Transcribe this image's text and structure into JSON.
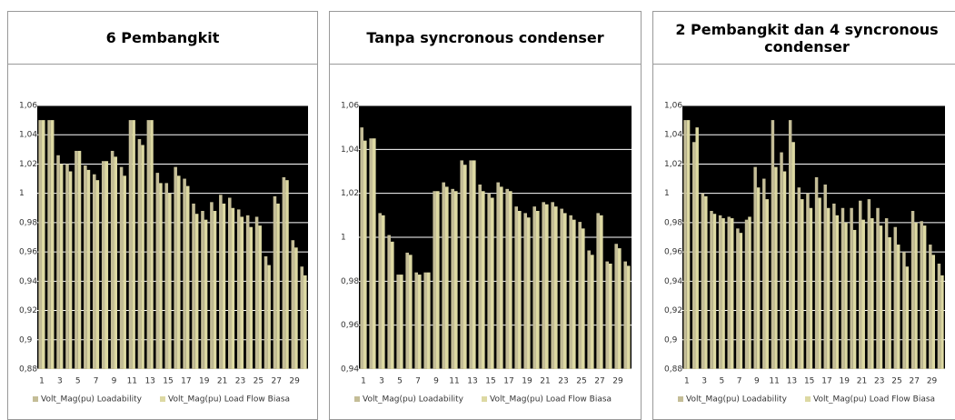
{
  "chart_data": [
    {
      "type": "bar",
      "title": "6 Pembangkit",
      "categories": [
        "1",
        null,
        "3",
        null,
        "5",
        null,
        "7",
        null,
        "9",
        null,
        "11",
        null,
        "13",
        null,
        "15",
        null,
        "17",
        null,
        "19",
        null,
        "21",
        null,
        "23",
        null,
        "25",
        null,
        "27",
        null,
        "29",
        null
      ],
      "series": [
        {
          "name": "Volt_Mag(pu) Loadability",
          "color": "#c4bd97",
          "values": [
            1.05,
            1.05,
            1.026,
            1.02,
            1.029,
            1.019,
            1.013,
            1.022,
            1.029,
            1.018,
            1.05,
            1.037,
            1.05,
            1.014,
            1.007,
            1.018,
            1.01,
            0.993,
            0.988,
            0.994,
            0.999,
            0.997,
            0.989,
            0.985,
            0.984,
            0.957,
            0.998,
            1.011,
            0.968,
            0.95
          ]
        },
        {
          "name": "Volt_Mag(pu) Load Flow Biasa",
          "color": "#ddd9a3",
          "values": [
            1.05,
            1.05,
            1.02,
            1.015,
            1.029,
            1.016,
            1.009,
            1.022,
            1.025,
            1.012,
            1.05,
            1.033,
            1.05,
            1.007,
            1.0,
            1.012,
            1.005,
            0.986,
            0.982,
            0.988,
            0.993,
            0.99,
            0.984,
            0.977,
            0.978,
            0.951,
            0.993,
            1.009,
            0.963,
            0.944
          ]
        }
      ],
      "ylim": [
        0.88,
        1.06
      ],
      "yticks": [
        {
          "value": 0.88,
          "label": "0,88"
        },
        {
          "value": 0.9,
          "label": "0,9"
        },
        {
          "value": 0.92,
          "label": "0,92"
        },
        {
          "value": 0.94,
          "label": "0,94"
        },
        {
          "value": 0.96,
          "label": "0,96"
        },
        {
          "value": 0.98,
          "label": "0,98"
        },
        1,
        {
          "value": 1.02,
          "label": "1,02"
        },
        {
          "value": 1.04,
          "label": "1,04"
        },
        {
          "value": 1.06,
          "label": "1,06"
        }
      ],
      "grid": true,
      "legend": "bottom"
    },
    {
      "type": "bar",
      "title": "Tanpa syncronous condenser",
      "categories": [
        "1",
        null,
        "3",
        null,
        "5",
        null,
        "7",
        null,
        "9",
        null,
        "11",
        null,
        "13",
        null,
        "15",
        null,
        "17",
        null,
        "19",
        null,
        "21",
        null,
        "23",
        null,
        "25",
        null,
        "27",
        null,
        "29",
        null
      ],
      "series": [
        {
          "name": "Volt_Mag(pu) Loadability",
          "color": "#c4bd97",
          "values": [
            1.05,
            1.045,
            1.011,
            1.001,
            0.983,
            0.993,
            0.984,
            0.984,
            1.021,
            1.025,
            1.022,
            1.035,
            1.035,
            1.024,
            1.02,
            1.025,
            1.022,
            1.014,
            1.011,
            1.014,
            1.016,
            1.016,
            1.013,
            1.01,
            1.007,
            0.994,
            1.011,
            0.989,
            0.997,
            0.989
          ]
        },
        {
          "name": "Volt_Mag(pu) Load Flow Biasa",
          "color": "#ddd9a3",
          "values": [
            1.044,
            1.045,
            1.01,
            0.998,
            0.983,
            0.992,
            0.983,
            0.984,
            1.021,
            1.023,
            1.021,
            1.033,
            1.035,
            1.021,
            1.018,
            1.023,
            1.021,
            1.012,
            1.009,
            1.012,
            1.015,
            1.014,
            1.011,
            1.008,
            1.004,
            0.992,
            1.01,
            0.988,
            0.995,
            0.987
          ]
        }
      ],
      "ylim": [
        0.94,
        1.06
      ],
      "yticks": [
        {
          "value": 0.94,
          "label": "0,94"
        },
        {
          "value": 0.96,
          "label": "0,96"
        },
        {
          "value": 0.98,
          "label": "0,98"
        },
        1,
        {
          "value": 1.02,
          "label": "1,02"
        },
        {
          "value": 1.04,
          "label": "1,04"
        },
        {
          "value": 1.06,
          "label": "1,06"
        }
      ],
      "grid": true,
      "legend": "bottom"
    },
    {
      "type": "bar",
      "title": "2 Pembangkit dan 4 syncronous condenser",
      "categories": [
        "1",
        null,
        "3",
        null,
        "5",
        null,
        "7",
        null,
        "9",
        null,
        "11",
        null,
        "13",
        null,
        "15",
        null,
        "17",
        null,
        "19",
        null,
        "21",
        null,
        "23",
        null,
        "25",
        null,
        "27",
        null,
        "29",
        null
      ],
      "series": [
        {
          "name": "Volt_Mag(pu) Loadability",
          "color": "#c4bd97",
          "values": [
            1.05,
            1.035,
            1.0,
            0.988,
            0.985,
            0.984,
            0.976,
            0.982,
            1.018,
            1.01,
            1.05,
            1.028,
            1.05,
            1.004,
            1.0,
            1.011,
            1.006,
            0.993,
            0.99,
            0.99,
            0.995,
            0.996,
            0.99,
            0.983,
            0.977,
            0.96,
            0.988,
            0.981,
            0.965,
            0.952
          ]
        },
        {
          "name": "Volt_Mag(pu) Load Flow Biasa",
          "color": "#ddd9a3",
          "values": [
            1.05,
            1.045,
            0.998,
            0.986,
            0.983,
            0.983,
            0.973,
            0.984,
            1.004,
            0.996,
            1.018,
            1.015,
            1.035,
            0.996,
            0.99,
            0.997,
            0.99,
            0.985,
            0.98,
            0.975,
            0.982,
            0.983,
            0.978,
            0.97,
            0.965,
            0.95,
            0.98,
            0.978,
            0.958,
            0.944
          ]
        }
      ],
      "ylim": [
        0.88,
        1.06
      ],
      "yticks": [
        {
          "value": 0.88,
          "label": "0,88"
        },
        {
          "value": 0.9,
          "label": "0,9"
        },
        {
          "value": 0.92,
          "label": "0,92"
        },
        {
          "value": 0.94,
          "label": "0,94"
        },
        {
          "value": 0.96,
          "label": "0,96"
        },
        {
          "value": 0.98,
          "label": "0,98"
        },
        1,
        {
          "value": 1.02,
          "label": "1,02"
        },
        {
          "value": 1.04,
          "label": "1,04"
        },
        {
          "value": 1.06,
          "label": "1,06"
        }
      ],
      "grid": true,
      "legend": "bottom"
    }
  ]
}
